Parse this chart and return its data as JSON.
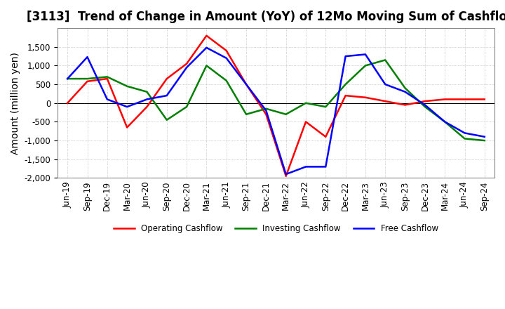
{
  "title": "[3113]  Trend of Change in Amount (YoY) of 12Mo Moving Sum of Cashflows",
  "ylabel": "Amount (million yen)",
  "ylim": [
    -2000,
    2000
  ],
  "yticks": [
    -2000,
    -1500,
    -1000,
    -500,
    0,
    500,
    1000,
    1500
  ],
  "x_labels": [
    "Jun-19",
    "Sep-19",
    "Dec-19",
    "Mar-20",
    "Jun-20",
    "Sep-20",
    "Dec-20",
    "Mar-21",
    "Jun-21",
    "Sep-21",
    "Dec-21",
    "Mar-22",
    "Jun-22",
    "Sep-22",
    "Dec-22",
    "Mar-23",
    "Jun-23",
    "Sep-23",
    "Dec-23",
    "Mar-24",
    "Jun-24",
    "Sep-24"
  ],
  "operating": [
    0,
    580,
    650,
    -650,
    -100,
    650,
    1050,
    1800,
    1400,
    500,
    -300,
    -1950,
    -500,
    -900,
    200,
    150,
    50,
    -50,
    50,
    100,
    100,
    100
  ],
  "investing": [
    650,
    650,
    700,
    450,
    300,
    -450,
    -100,
    1000,
    600,
    -300,
    -150,
    -300,
    0,
    -100,
    500,
    1000,
    1150,
    400,
    -100,
    -500,
    -950,
    -1000
  ],
  "free": [
    650,
    1230,
    100,
    -100,
    100,
    200,
    950,
    1480,
    1200,
    500,
    -200,
    -1900,
    -1700,
    -1700,
    1250,
    1300,
    500,
    300,
    -50,
    -500,
    -800,
    -900
  ],
  "operating_color": "#FF0000",
  "investing_color": "#008000",
  "free_color": "#0000FF",
  "background_color": "#FFFFFF",
  "grid_color": "#AAAAAA",
  "title_fontsize": 12,
  "axis_fontsize": 10,
  "tick_fontsize": 8.5
}
